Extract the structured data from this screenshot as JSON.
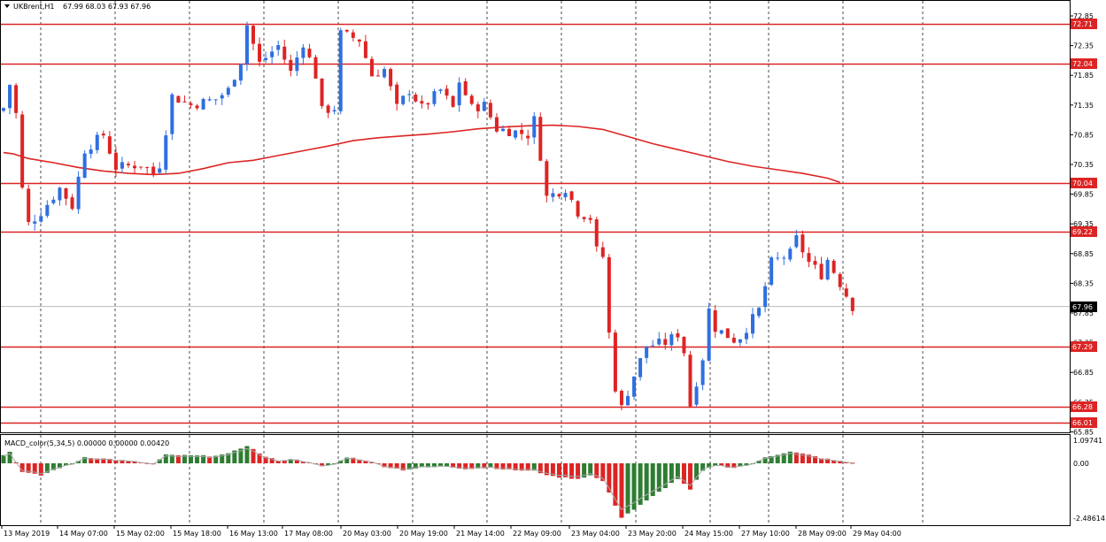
{
  "header": {
    "symbol": "UKBrent,H1",
    "ohlc": "67.99 68.03 67.93 67.96"
  },
  "macd": {
    "label": "MACD_color(5,34,5) 0.00000 0.00000 0.00420"
  },
  "colors": {
    "background": "#ffffff",
    "bull": "#2f6fe0",
    "bear": "#dd2424",
    "level_line": "#dd2424",
    "moving_average": "#dd2424",
    "macd_positive": "#dd2424",
    "macd_negative": "#2e7d32",
    "signal": "#aaaaaa",
    "grid": "#000000",
    "current_price_line": "#bbbbbb"
  },
  "chart_data": [
    {
      "type": "candlestick",
      "symbol": "UKBrent",
      "timeframe": "H1",
      "ylim": [
        65.6,
        73.0
      ],
      "y_ticks": [
        "72.85",
        "72.35",
        "71.85",
        "71.35",
        "70.85",
        "70.35",
        "69.85",
        "69.35",
        "68.85",
        "68.35",
        "67.85",
        "67.35",
        "66.85",
        "66.35",
        "65.85"
      ],
      "x_ticks": [
        "13 May 2019",
        "14 May 07:00",
        "15 May 02:00",
        "15 May 18:00",
        "16 May 13:00",
        "17 May 08:00",
        "20 May 03:00",
        "20 May 19:00",
        "21 May 14:00",
        "22 May 09:00",
        "23 May 04:00",
        "23 May 20:00",
        "24 May 15:00",
        "27 May 10:00",
        "28 May 09:00",
        "29 May 04:00"
      ],
      "grid": "vertical dashed",
      "current_price": 67.96,
      "current_price_label": "67.96",
      "levels": [
        {
          "value": 72.71,
          "label": "72.71"
        },
        {
          "value": 72.04,
          "label": "72.04"
        },
        {
          "value": 70.04,
          "label": "70.04"
        },
        {
          "value": 69.22,
          "label": "69.22"
        },
        {
          "value": 67.29,
          "label": "67.29"
        },
        {
          "value": 66.28,
          "label": "66.28"
        },
        {
          "value": 66.01,
          "label": "66.01"
        }
      ],
      "moving_average_path": [
        [
          0,
          70.55
        ],
        [
          1.5,
          70.53
        ],
        [
          4,
          70.45
        ],
        [
          8,
          70.38
        ],
        [
          12,
          70.3
        ],
        [
          16,
          70.24
        ],
        [
          20,
          70.2
        ],
        [
          24,
          70.18
        ],
        [
          28,
          70.2
        ],
        [
          32,
          70.28
        ],
        [
          36,
          70.38
        ],
        [
          40,
          70.42
        ],
        [
          44,
          70.5
        ],
        [
          48,
          70.58
        ],
        [
          52,
          70.66
        ],
        [
          56,
          70.75
        ],
        [
          60,
          70.8
        ],
        [
          64,
          70.83
        ],
        [
          68,
          70.86
        ],
        [
          72,
          70.9
        ],
        [
          76,
          70.95
        ],
        [
          80,
          70.98
        ],
        [
          84,
          71.0
        ],
        [
          88,
          71.01
        ],
        [
          92,
          70.99
        ],
        [
          96,
          70.94
        ],
        [
          100,
          70.82
        ],
        [
          104,
          70.7
        ],
        [
          108,
          70.6
        ],
        [
          112,
          70.5
        ],
        [
          116,
          70.4
        ],
        [
          120,
          70.32
        ],
        [
          124,
          70.26
        ],
        [
          128,
          70.2
        ],
        [
          132,
          70.12
        ],
        [
          134,
          70.05
        ]
      ],
      "segments": [
        {
          "start": 0,
          "end": 1,
          "from": 71.3,
          "to": 71.7
        },
        {
          "start": 1,
          "end": 2,
          "from": 71.7,
          "to": 71.2
        },
        {
          "start": 2,
          "end": 3.5,
          "from": 71.2,
          "to": 69.3
        },
        {
          "start": 3.5,
          "end": 6,
          "from": 69.3,
          "to": 69.55
        },
        {
          "start": 6,
          "end": 9,
          "from": 69.55,
          "to": 69.95
        },
        {
          "start": 9,
          "end": 11,
          "from": 69.95,
          "to": 69.65
        },
        {
          "start": 11,
          "end": 13,
          "from": 69.65,
          "to": 70.6
        },
        {
          "start": 13,
          "end": 16,
          "from": 70.6,
          "to": 70.85
        },
        {
          "start": 16,
          "end": 18,
          "from": 70.85,
          "to": 70.3
        },
        {
          "start": 18,
          "end": 22,
          "from": 70.3,
          "to": 70.35
        },
        {
          "start": 22,
          "end": 24,
          "from": 70.35,
          "to": 70.2
        },
        {
          "start": 24,
          "end": 25,
          "from": 70.2,
          "to": 70.35
        },
        {
          "start": 25,
          "end": 27,
          "from": 70.35,
          "to": 71.5
        },
        {
          "start": 27,
          "end": 30,
          "from": 71.5,
          "to": 71.35
        },
        {
          "start": 30,
          "end": 34,
          "from": 71.35,
          "to": 71.45
        },
        {
          "start": 34,
          "end": 36,
          "from": 71.45,
          "to": 71.6
        },
        {
          "start": 36,
          "end": 38,
          "from": 71.6,
          "to": 72.1
        },
        {
          "start": 38,
          "end": 39,
          "from": 72.1,
          "to": 72.7
        },
        {
          "start": 39,
          "end": 41,
          "from": 72.7,
          "to": 72.05
        },
        {
          "start": 41,
          "end": 44,
          "from": 72.05,
          "to": 72.35
        },
        {
          "start": 44,
          "end": 46,
          "from": 72.35,
          "to": 71.9
        },
        {
          "start": 46,
          "end": 48,
          "from": 71.9,
          "to": 72.4
        },
        {
          "start": 48,
          "end": 50,
          "from": 72.4,
          "to": 71.85
        },
        {
          "start": 50,
          "end": 51,
          "from": 71.85,
          "to": 71.25
        },
        {
          "start": 51,
          "end": 53,
          "from": 71.25,
          "to": 71.3
        },
        {
          "start": 53,
          "end": 54,
          "from": 71.3,
          "to": 72.55
        },
        {
          "start": 54,
          "end": 57,
          "from": 72.55,
          "to": 72.45
        },
        {
          "start": 57,
          "end": 59,
          "from": 72.45,
          "to": 71.85
        },
        {
          "start": 59,
          "end": 61,
          "from": 71.85,
          "to": 71.95
        },
        {
          "start": 61,
          "end": 63,
          "from": 71.95,
          "to": 71.3
        },
        {
          "start": 63,
          "end": 65,
          "from": 71.3,
          "to": 71.6
        },
        {
          "start": 65,
          "end": 67,
          "from": 71.6,
          "to": 71.3
        },
        {
          "start": 67,
          "end": 70,
          "from": 71.3,
          "to": 71.6
        },
        {
          "start": 70,
          "end": 72,
          "from": 71.6,
          "to": 71.3
        },
        {
          "start": 72,
          "end": 73,
          "from": 71.3,
          "to": 71.75
        },
        {
          "start": 73,
          "end": 75,
          "from": 71.75,
          "to": 71.3
        },
        {
          "start": 75,
          "end": 77,
          "from": 71.3,
          "to": 71.35
        },
        {
          "start": 77,
          "end": 79,
          "from": 71.35,
          "to": 70.95
        },
        {
          "start": 79,
          "end": 82,
          "from": 70.95,
          "to": 70.9
        },
        {
          "start": 82,
          "end": 84,
          "from": 70.9,
          "to": 70.85
        },
        {
          "start": 84,
          "end": 85,
          "from": 70.85,
          "to": 71.1
        },
        {
          "start": 85,
          "end": 86,
          "from": 71.1,
          "to": 70.5
        },
        {
          "start": 86,
          "end": 87,
          "from": 70.5,
          "to": 69.8
        },
        {
          "start": 87,
          "end": 90,
          "from": 69.8,
          "to": 69.95
        },
        {
          "start": 90,
          "end": 92,
          "from": 69.95,
          "to": 69.55
        },
        {
          "start": 92,
          "end": 94,
          "from": 69.55,
          "to": 69.45
        },
        {
          "start": 94,
          "end": 95,
          "from": 69.45,
          "to": 68.9
        },
        {
          "start": 95,
          "end": 96,
          "from": 68.9,
          "to": 68.8
        },
        {
          "start": 96,
          "end": 97,
          "from": 68.8,
          "to": 67.5
        },
        {
          "start": 97,
          "end": 98,
          "from": 67.5,
          "to": 66.6
        },
        {
          "start": 98,
          "end": 99,
          "from": 66.6,
          "to": 66.25
        },
        {
          "start": 99,
          "end": 101,
          "from": 66.25,
          "to": 66.8
        },
        {
          "start": 101,
          "end": 103,
          "from": 66.8,
          "to": 67.3
        },
        {
          "start": 103,
          "end": 106,
          "from": 67.3,
          "to": 67.35
        },
        {
          "start": 106,
          "end": 108,
          "from": 67.35,
          "to": 67.5
        },
        {
          "start": 108,
          "end": 109,
          "from": 67.5,
          "to": 67.2
        },
        {
          "start": 109,
          "end": 110,
          "from": 67.2,
          "to": 66.3
        },
        {
          "start": 110,
          "end": 112,
          "from": 66.3,
          "to": 67.1
        },
        {
          "start": 112,
          "end": 113,
          "from": 67.1,
          "to": 67.9
        },
        {
          "start": 113,
          "end": 114,
          "from": 67.9,
          "to": 67.6
        },
        {
          "start": 114,
          "end": 117,
          "from": 67.6,
          "to": 67.4
        },
        {
          "start": 117,
          "end": 118,
          "from": 67.4,
          "to": 67.45
        },
        {
          "start": 118,
          "end": 121,
          "from": 67.45,
          "to": 67.9
        },
        {
          "start": 121,
          "end": 122,
          "from": 67.9,
          "to": 68.3
        },
        {
          "start": 122,
          "end": 123,
          "from": 68.3,
          "to": 68.7
        },
        {
          "start": 123,
          "end": 126,
          "from": 68.7,
          "to": 68.85
        },
        {
          "start": 126,
          "end": 127,
          "from": 68.85,
          "to": 69.1
        },
        {
          "start": 127,
          "end": 129,
          "from": 69.1,
          "to": 68.7
        },
        {
          "start": 129,
          "end": 131,
          "from": 68.7,
          "to": 68.5
        },
        {
          "start": 131,
          "end": 132,
          "from": 68.5,
          "to": 68.75
        },
        {
          "start": 132,
          "end": 134,
          "from": 68.75,
          "to": 68.35
        },
        {
          "start": 134,
          "end": 136,
          "from": 68.35,
          "to": 67.96
        }
      ]
    },
    {
      "type": "histogram",
      "name": "MACD_color(5,34,5)",
      "ylim": [
        -2.48614,
        1.09741
      ],
      "y_ticks": [
        "1.09741",
        "0.00",
        "-2.48614"
      ],
      "segments": [
        {
          "start": 0,
          "end": 1,
          "from": 0.4,
          "to": 0.55
        },
        {
          "start": 1,
          "end": 3,
          "from": 0.55,
          "to": -0.4
        },
        {
          "start": 3,
          "end": 6,
          "from": -0.4,
          "to": -0.55
        },
        {
          "start": 6,
          "end": 9,
          "from": -0.55,
          "to": -0.2
        },
        {
          "start": 9,
          "end": 11,
          "from": -0.2,
          "to": -0.05
        },
        {
          "start": 11,
          "end": 13,
          "from": -0.05,
          "to": 0.3
        },
        {
          "start": 13,
          "end": 17,
          "from": 0.3,
          "to": 0.2
        },
        {
          "start": 17,
          "end": 22,
          "from": 0.2,
          "to": 0.05
        },
        {
          "start": 22,
          "end": 24,
          "from": 0.05,
          "to": -0.05
        },
        {
          "start": 24,
          "end": 26,
          "from": -0.05,
          "to": 0.4
        },
        {
          "start": 26,
          "end": 33,
          "from": 0.4,
          "to": 0.35
        },
        {
          "start": 33,
          "end": 36,
          "from": 0.35,
          "to": 0.45
        },
        {
          "start": 36,
          "end": 39,
          "from": 0.45,
          "to": 0.85
        },
        {
          "start": 39,
          "end": 42,
          "from": 0.85,
          "to": 0.3
        },
        {
          "start": 42,
          "end": 44,
          "from": 0.3,
          "to": 0.15
        },
        {
          "start": 44,
          "end": 47,
          "from": 0.15,
          "to": 0.2
        },
        {
          "start": 47,
          "end": 51,
          "from": 0.2,
          "to": -0.15
        },
        {
          "start": 51,
          "end": 53,
          "from": -0.15,
          "to": -0.05
        },
        {
          "start": 53,
          "end": 55,
          "from": -0.05,
          "to": 0.3
        },
        {
          "start": 55,
          "end": 58,
          "from": 0.3,
          "to": 0.15
        },
        {
          "start": 58,
          "end": 61,
          "from": 0.15,
          "to": -0.15
        },
        {
          "start": 61,
          "end": 64,
          "from": -0.15,
          "to": -0.3
        },
        {
          "start": 64,
          "end": 67,
          "from": -0.3,
          "to": -0.2
        },
        {
          "start": 67,
          "end": 71,
          "from": -0.2,
          "to": -0.15
        },
        {
          "start": 71,
          "end": 74,
          "from": -0.15,
          "to": -0.25
        },
        {
          "start": 74,
          "end": 78,
          "from": -0.25,
          "to": -0.2
        },
        {
          "start": 78,
          "end": 81,
          "from": -0.2,
          "to": -0.3
        },
        {
          "start": 81,
          "end": 85,
          "from": -0.3,
          "to": -0.35
        },
        {
          "start": 85,
          "end": 88,
          "from": -0.35,
          "to": -0.6
        },
        {
          "start": 88,
          "end": 92,
          "from": -0.6,
          "to": -0.7
        },
        {
          "start": 92,
          "end": 94,
          "from": -0.7,
          "to": -0.55
        },
        {
          "start": 94,
          "end": 96,
          "from": -0.55,
          "to": -0.8
        },
        {
          "start": 96,
          "end": 99,
          "from": -0.8,
          "to": -2.45
        },
        {
          "start": 99,
          "end": 101,
          "from": -2.45,
          "to": -2.1
        },
        {
          "start": 101,
          "end": 104,
          "from": -2.1,
          "to": -1.5
        },
        {
          "start": 104,
          "end": 108,
          "from": -1.5,
          "to": -0.7
        },
        {
          "start": 108,
          "end": 110,
          "from": -0.7,
          "to": -1.2
        },
        {
          "start": 110,
          "end": 112,
          "from": -1.2,
          "to": -0.35
        },
        {
          "start": 112,
          "end": 114,
          "from": -0.35,
          "to": -0.1
        },
        {
          "start": 114,
          "end": 117,
          "from": -0.1,
          "to": -0.2
        },
        {
          "start": 117,
          "end": 120,
          "from": -0.2,
          "to": -0.05
        },
        {
          "start": 120,
          "end": 122,
          "from": -0.05,
          "to": 0.3
        },
        {
          "start": 122,
          "end": 126,
          "from": 0.3,
          "to": 0.55
        },
        {
          "start": 126,
          "end": 129,
          "from": 0.55,
          "to": 0.4
        },
        {
          "start": 129,
          "end": 131,
          "from": 0.4,
          "to": 0.25
        },
        {
          "start": 131,
          "end": 134,
          "from": 0.25,
          "to": 0.1
        },
        {
          "start": 134,
          "end": 136,
          "from": 0.1,
          "to": 0.02
        }
      ]
    }
  ]
}
